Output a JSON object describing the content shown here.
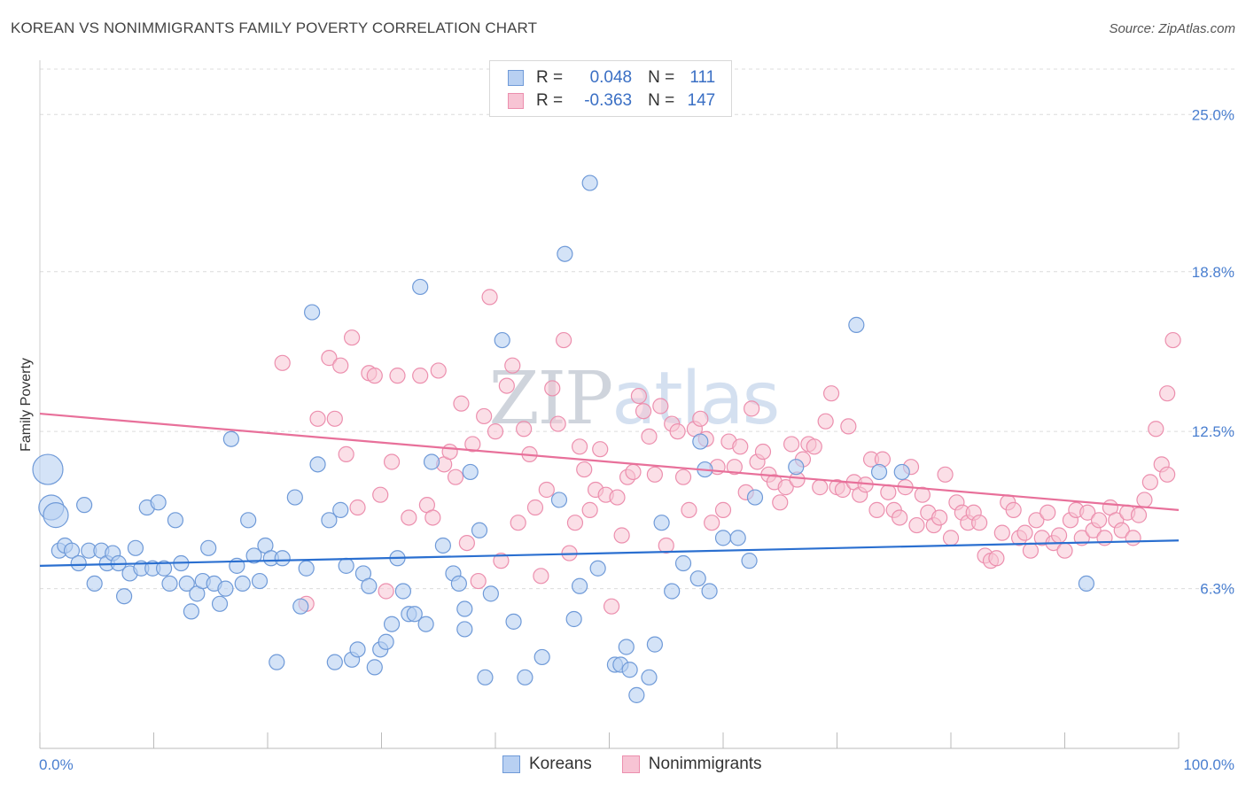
{
  "title": "KOREAN VS NONIMMIGRANTS FAMILY POVERTY CORRELATION CHART",
  "source": "Source: ZipAtlas.com",
  "watermark": "ZIPatlas",
  "colors": {
    "koreans_fill": "#b8d0f2",
    "koreans_stroke": "#6f9ad8",
    "koreans_line": "#2a6fd0",
    "nonimm_fill": "#f7c4d4",
    "nonimm_stroke": "#ec8fae",
    "nonimm_line": "#e8709a",
    "axis_label": "#4a7fd0"
  },
  "legend": {
    "koreans": {
      "r_label": "R =",
      "r_value": "0.048",
      "n_label": "N =",
      "n_value": "111"
    },
    "nonimmigrants": {
      "r_label": "R =",
      "r_value": "-0.363",
      "n_label": "N =",
      "n_value": "147"
    }
  },
  "bottom_legend": {
    "koreans": "Koreans",
    "nonimmigrants": "Nonimmigrants"
  },
  "chart_data": {
    "type": "scatter",
    "title": "KOREAN VS NONIMMIGRANTS FAMILY POVERTY CORRELATION CHART",
    "xlabel": "",
    "ylabel": "Family Poverty",
    "xlim": [
      0,
      100
    ],
    "ylim": [
      0,
      27
    ],
    "x_tick_labels": [
      "0.0%",
      "100.0%"
    ],
    "y_ticks": [
      6.3,
      12.5,
      18.8,
      25.0
    ],
    "y_tick_labels": [
      "6.3%",
      "12.5%",
      "18.8%",
      "25.0%"
    ],
    "grid": true,
    "series": [
      {
        "name": "Koreans",
        "r": 0.048,
        "n": 111,
        "trend": {
          "x": [
            0,
            100
          ],
          "y": [
            7.2,
            8.2
          ]
        },
        "points": [
          {
            "x": 0.7,
            "y": 11.0,
            "big": true
          },
          {
            "x": 1.0,
            "y": 9.5,
            "big": true
          },
          {
            "x": 1.4,
            "y": 9.2,
            "big": true
          },
          {
            "x": 1.7,
            "y": 7.8
          },
          {
            "x": 2.2,
            "y": 8.0
          },
          {
            "x": 2.8,
            "y": 7.8
          },
          {
            "x": 3.4,
            "y": 7.3
          },
          {
            "x": 3.9,
            "y": 9.6
          },
          {
            "x": 4.3,
            "y": 7.8
          },
          {
            "x": 4.8,
            "y": 6.5
          },
          {
            "x": 5.4,
            "y": 7.8
          },
          {
            "x": 5.9,
            "y": 7.3
          },
          {
            "x": 6.4,
            "y": 7.7
          },
          {
            "x": 6.9,
            "y": 7.3
          },
          {
            "x": 7.4,
            "y": 6.0
          },
          {
            "x": 7.9,
            "y": 6.9
          },
          {
            "x": 8.4,
            "y": 7.9
          },
          {
            "x": 8.9,
            "y": 7.1
          },
          {
            "x": 9.4,
            "y": 9.5
          },
          {
            "x": 9.9,
            "y": 7.1
          },
          {
            "x": 10.4,
            "y": 9.7
          },
          {
            "x": 10.9,
            "y": 7.1
          },
          {
            "x": 11.4,
            "y": 6.5
          },
          {
            "x": 11.9,
            "y": 9.0
          },
          {
            "x": 12.4,
            "y": 7.3
          },
          {
            "x": 12.9,
            "y": 6.5
          },
          {
            "x": 13.3,
            "y": 5.4
          },
          {
            "x": 13.8,
            "y": 6.1
          },
          {
            "x": 14.3,
            "y": 6.6
          },
          {
            "x": 14.8,
            "y": 7.9
          },
          {
            "x": 15.3,
            "y": 6.5
          },
          {
            "x": 15.8,
            "y": 5.7
          },
          {
            "x": 16.3,
            "y": 6.3
          },
          {
            "x": 16.8,
            "y": 12.2
          },
          {
            "x": 17.3,
            "y": 7.2
          },
          {
            "x": 17.8,
            "y": 6.5
          },
          {
            "x": 18.3,
            "y": 9.0
          },
          {
            "x": 18.8,
            "y": 7.6
          },
          {
            "x": 19.3,
            "y": 6.6
          },
          {
            "x": 19.8,
            "y": 8.0
          },
          {
            "x": 20.3,
            "y": 7.5
          },
          {
            "x": 20.8,
            "y": 3.4
          },
          {
            "x": 21.3,
            "y": 7.5
          },
          {
            "x": 22.4,
            "y": 9.9
          },
          {
            "x": 22.9,
            "y": 5.6
          },
          {
            "x": 23.4,
            "y": 7.1
          },
          {
            "x": 23.9,
            "y": 17.2
          },
          {
            "x": 24.4,
            "y": 11.2
          },
          {
            "x": 25.4,
            "y": 9.0
          },
          {
            "x": 25.9,
            "y": 3.4
          },
          {
            "x": 26.4,
            "y": 9.4
          },
          {
            "x": 26.9,
            "y": 7.2
          },
          {
            "x": 27.4,
            "y": 3.5
          },
          {
            "x": 27.9,
            "y": 3.9
          },
          {
            "x": 28.4,
            "y": 6.9
          },
          {
            "x": 28.9,
            "y": 6.4
          },
          {
            "x": 29.4,
            "y": 3.2
          },
          {
            "x": 29.9,
            "y": 3.9
          },
          {
            "x": 30.4,
            "y": 4.2
          },
          {
            "x": 30.9,
            "y": 4.9
          },
          {
            "x": 31.4,
            "y": 7.5
          },
          {
            "x": 31.9,
            "y": 6.2
          },
          {
            "x": 32.4,
            "y": 5.3
          },
          {
            "x": 32.9,
            "y": 5.3
          },
          {
            "x": 33.4,
            "y": 18.2
          },
          {
            "x": 33.9,
            "y": 4.9
          },
          {
            "x": 34.4,
            "y": 11.3
          },
          {
            "x": 35.4,
            "y": 8.0
          },
          {
            "x": 36.3,
            "y": 6.9
          },
          {
            "x": 36.8,
            "y": 6.5
          },
          {
            "x": 37.3,
            "y": 4.7
          },
          {
            "x": 37.8,
            "y": 10.9
          },
          {
            "x": 37.3,
            "y": 5.5
          },
          {
            "x": 38.6,
            "y": 8.6
          },
          {
            "x": 39.1,
            "y": 2.8
          },
          {
            "x": 39.6,
            "y": 6.1
          },
          {
            "x": 40.6,
            "y": 16.1
          },
          {
            "x": 41.6,
            "y": 5.0
          },
          {
            "x": 42.6,
            "y": 2.8
          },
          {
            "x": 44.1,
            "y": 3.6
          },
          {
            "x": 45.6,
            "y": 9.8
          },
          {
            "x": 46.1,
            "y": 19.5
          },
          {
            "x": 46.9,
            "y": 5.1
          },
          {
            "x": 47.4,
            "y": 6.4
          },
          {
            "x": 48.3,
            "y": 22.3
          },
          {
            "x": 49.0,
            "y": 7.1
          },
          {
            "x": 50.5,
            "y": 3.3
          },
          {
            "x": 51.0,
            "y": 3.3
          },
          {
            "x": 51.5,
            "y": 4.0
          },
          {
            "x": 51.8,
            "y": 3.1
          },
          {
            "x": 52.4,
            "y": 2.1
          },
          {
            "x": 53.5,
            "y": 2.8
          },
          {
            "x": 54.0,
            "y": 4.1
          },
          {
            "x": 54.6,
            "y": 8.9
          },
          {
            "x": 55.5,
            "y": 6.2
          },
          {
            "x": 56.5,
            "y": 7.3
          },
          {
            "x": 57.8,
            "y": 6.7
          },
          {
            "x": 58.8,
            "y": 6.2
          },
          {
            "x": 58.0,
            "y": 12.1
          },
          {
            "x": 58.4,
            "y": 11.0
          },
          {
            "x": 60.0,
            "y": 8.3
          },
          {
            "x": 61.3,
            "y": 8.3
          },
          {
            "x": 62.3,
            "y": 7.4
          },
          {
            "x": 62.8,
            "y": 9.9
          },
          {
            "x": 66.4,
            "y": 11.1
          },
          {
            "x": 71.7,
            "y": 16.7
          },
          {
            "x": 73.7,
            "y": 10.9
          },
          {
            "x": 75.7,
            "y": 10.9
          },
          {
            "x": 91.9,
            "y": 6.5
          }
        ]
      },
      {
        "name": "Nonimmigrants",
        "r": -0.363,
        "n": 147,
        "trend": {
          "x": [
            0,
            100
          ],
          "y": [
            13.2,
            9.4
          ]
        },
        "points": [
          {
            "x": 21.3,
            "y": 15.2
          },
          {
            "x": 23.4,
            "y": 5.7
          },
          {
            "x": 24.4,
            "y": 13.0
          },
          {
            "x": 25.4,
            "y": 15.4
          },
          {
            "x": 25.9,
            "y": 13.0
          },
          {
            "x": 26.4,
            "y": 15.1
          },
          {
            "x": 26.9,
            "y": 11.6
          },
          {
            "x": 27.4,
            "y": 16.2
          },
          {
            "x": 27.9,
            "y": 9.5
          },
          {
            "x": 28.9,
            "y": 14.8
          },
          {
            "x": 29.4,
            "y": 14.7
          },
          {
            "x": 29.9,
            "y": 10.0
          },
          {
            "x": 30.4,
            "y": 6.2
          },
          {
            "x": 30.9,
            "y": 11.3
          },
          {
            "x": 31.4,
            "y": 14.7
          },
          {
            "x": 32.4,
            "y": 9.1
          },
          {
            "x": 33.4,
            "y": 14.7
          },
          {
            "x": 34.0,
            "y": 9.6
          },
          {
            "x": 34.5,
            "y": 9.1
          },
          {
            "x": 35.0,
            "y": 14.9
          },
          {
            "x": 35.5,
            "y": 11.2
          },
          {
            "x": 36.0,
            "y": 11.7
          },
          {
            "x": 36.5,
            "y": 10.7
          },
          {
            "x": 37.0,
            "y": 13.6
          },
          {
            "x": 37.5,
            "y": 8.1
          },
          {
            "x": 38.0,
            "y": 12.0
          },
          {
            "x": 38.5,
            "y": 6.6
          },
          {
            "x": 39.0,
            "y": 13.1
          },
          {
            "x": 39.5,
            "y": 17.8
          },
          {
            "x": 40.0,
            "y": 12.5
          },
          {
            "x": 40.5,
            "y": 7.4
          },
          {
            "x": 41.0,
            "y": 14.3
          },
          {
            "x": 41.5,
            "y": 15.1
          },
          {
            "x": 42.0,
            "y": 8.9
          },
          {
            "x": 42.5,
            "y": 12.6
          },
          {
            "x": 43.0,
            "y": 11.6
          },
          {
            "x": 43.5,
            "y": 9.5
          },
          {
            "x": 44.0,
            "y": 6.8
          },
          {
            "x": 44.5,
            "y": 10.2
          },
          {
            "x": 45.0,
            "y": 14.2
          },
          {
            "x": 45.5,
            "y": 12.8
          },
          {
            "x": 46.0,
            "y": 16.1
          },
          {
            "x": 46.5,
            "y": 7.7
          },
          {
            "x": 47.0,
            "y": 8.9
          },
          {
            "x": 47.4,
            "y": 11.9
          },
          {
            "x": 47.8,
            "y": 11.0
          },
          {
            "x": 48.3,
            "y": 9.4
          },
          {
            "x": 48.8,
            "y": 10.2
          },
          {
            "x": 49.2,
            "y": 11.8
          },
          {
            "x": 49.7,
            "y": 10.0
          },
          {
            "x": 50.2,
            "y": 5.6
          },
          {
            "x": 50.7,
            "y": 9.9
          },
          {
            "x": 51.1,
            "y": 8.4
          },
          {
            "x": 51.6,
            "y": 10.7
          },
          {
            "x": 52.1,
            "y": 10.9
          },
          {
            "x": 52.6,
            "y": 13.9
          },
          {
            "x": 53.0,
            "y": 13.3
          },
          {
            "x": 53.5,
            "y": 12.3
          },
          {
            "x": 54.0,
            "y": 10.8
          },
          {
            "x": 54.5,
            "y": 13.5
          },
          {
            "x": 55.0,
            "y": 8.0
          },
          {
            "x": 55.5,
            "y": 12.8
          },
          {
            "x": 56.0,
            "y": 12.5
          },
          {
            "x": 56.5,
            "y": 10.7
          },
          {
            "x": 57.0,
            "y": 9.4
          },
          {
            "x": 57.5,
            "y": 12.6
          },
          {
            "x": 58.0,
            "y": 13.0
          },
          {
            "x": 58.5,
            "y": 12.2
          },
          {
            "x": 59.0,
            "y": 8.9
          },
          {
            "x": 59.5,
            "y": 11.1
          },
          {
            "x": 60.0,
            "y": 9.4
          },
          {
            "x": 60.5,
            "y": 12.1
          },
          {
            "x": 61.0,
            "y": 11.1
          },
          {
            "x": 61.5,
            "y": 11.9
          },
          {
            "x": 62.0,
            "y": 10.1
          },
          {
            "x": 62.5,
            "y": 13.4
          },
          {
            "x": 63.0,
            "y": 11.3
          },
          {
            "x": 63.5,
            "y": 11.7
          },
          {
            "x": 64.0,
            "y": 10.8
          },
          {
            "x": 64.5,
            "y": 10.5
          },
          {
            "x": 65.0,
            "y": 9.7
          },
          {
            "x": 65.5,
            "y": 10.3
          },
          {
            "x": 66.0,
            "y": 12.0
          },
          {
            "x": 66.5,
            "y": 10.6
          },
          {
            "x": 67.0,
            "y": 11.4
          },
          {
            "x": 67.5,
            "y": 12.0
          },
          {
            "x": 68.0,
            "y": 11.9
          },
          {
            "x": 68.5,
            "y": 10.3
          },
          {
            "x": 69.0,
            "y": 12.9
          },
          {
            "x": 69.5,
            "y": 14.0
          },
          {
            "x": 70.0,
            "y": 10.3
          },
          {
            "x": 70.5,
            "y": 10.2
          },
          {
            "x": 71.0,
            "y": 12.7
          },
          {
            "x": 71.5,
            "y": 10.5
          },
          {
            "x": 72.0,
            "y": 10.0
          },
          {
            "x": 72.5,
            "y": 10.4
          },
          {
            "x": 73.0,
            "y": 11.4
          },
          {
            "x": 73.5,
            "y": 9.4
          },
          {
            "x": 74.0,
            "y": 11.4
          },
          {
            "x": 74.5,
            "y": 10.1
          },
          {
            "x": 75.0,
            "y": 9.4
          },
          {
            "x": 75.5,
            "y": 9.1
          },
          {
            "x": 76.0,
            "y": 10.3
          },
          {
            "x": 76.5,
            "y": 11.1
          },
          {
            "x": 77.0,
            "y": 8.8
          },
          {
            "x": 77.5,
            "y": 10.0
          },
          {
            "x": 78.0,
            "y": 9.3
          },
          {
            "x": 78.5,
            "y": 8.8
          },
          {
            "x": 79.0,
            "y": 9.1
          },
          {
            "x": 79.5,
            "y": 10.8
          },
          {
            "x": 80.0,
            "y": 8.3
          },
          {
            "x": 80.5,
            "y": 9.7
          },
          {
            "x": 81.0,
            "y": 9.3
          },
          {
            "x": 81.5,
            "y": 8.9
          },
          {
            "x": 82.0,
            "y": 9.3
          },
          {
            "x": 82.5,
            "y": 8.9
          },
          {
            "x": 83.0,
            "y": 7.6
          },
          {
            "x": 83.5,
            "y": 7.4
          },
          {
            "x": 84.0,
            "y": 7.5
          },
          {
            "x": 84.5,
            "y": 8.5
          },
          {
            "x": 85.0,
            "y": 9.7
          },
          {
            "x": 85.5,
            "y": 9.4
          },
          {
            "x": 86.0,
            "y": 8.3
          },
          {
            "x": 86.5,
            "y": 8.5
          },
          {
            "x": 87.0,
            "y": 7.8
          },
          {
            "x": 87.5,
            "y": 9.0
          },
          {
            "x": 88.0,
            "y": 8.3
          },
          {
            "x": 88.5,
            "y": 9.3
          },
          {
            "x": 89.0,
            "y": 8.1
          },
          {
            "x": 89.5,
            "y": 8.4
          },
          {
            "x": 90.0,
            "y": 7.8
          },
          {
            "x": 90.5,
            "y": 9.0
          },
          {
            "x": 91.0,
            "y": 9.4
          },
          {
            "x": 91.5,
            "y": 8.3
          },
          {
            "x": 92.0,
            "y": 9.3
          },
          {
            "x": 92.5,
            "y": 8.6
          },
          {
            "x": 93.0,
            "y": 9.0
          },
          {
            "x": 93.5,
            "y": 8.3
          },
          {
            "x": 94.0,
            "y": 9.5
          },
          {
            "x": 94.5,
            "y": 9.0
          },
          {
            "x": 95.0,
            "y": 8.6
          },
          {
            "x": 95.5,
            "y": 9.3
          },
          {
            "x": 96.0,
            "y": 8.3
          },
          {
            "x": 96.5,
            "y": 9.2
          },
          {
            "x": 97.0,
            "y": 9.8
          },
          {
            "x": 97.5,
            "y": 10.5
          },
          {
            "x": 98.0,
            "y": 12.6
          },
          {
            "x": 98.5,
            "y": 11.2
          },
          {
            "x": 99.0,
            "y": 14.0
          },
          {
            "x": 99.5,
            "y": 16.1
          },
          {
            "x": 99.0,
            "y": 10.8
          }
        ]
      }
    ]
  }
}
